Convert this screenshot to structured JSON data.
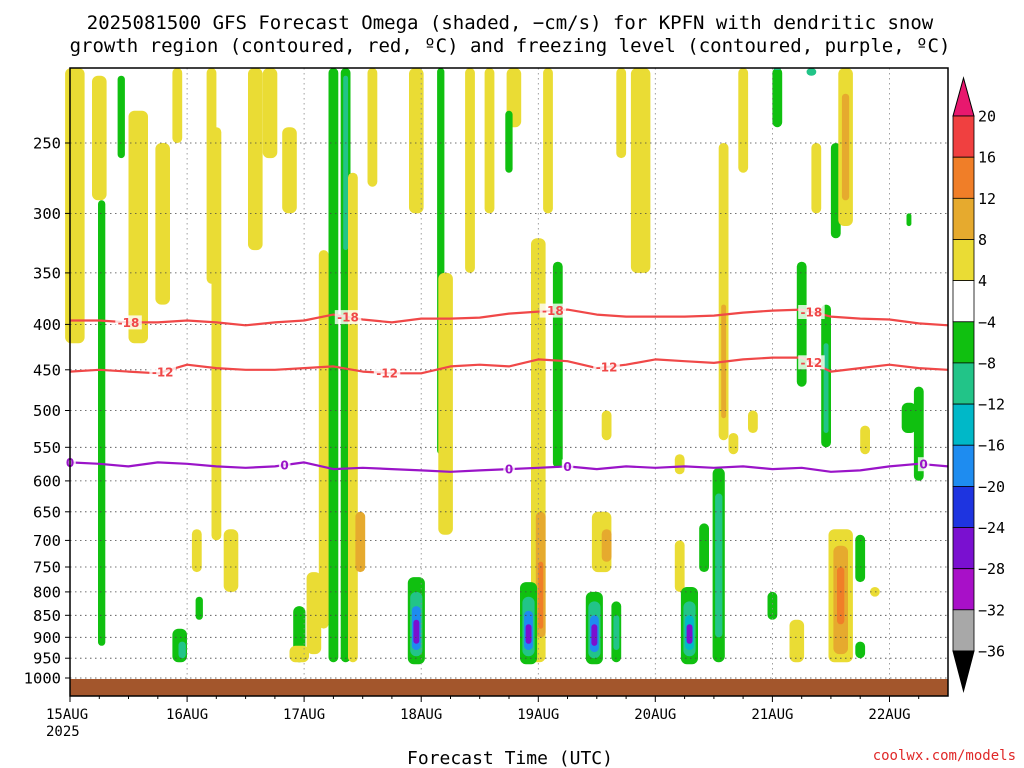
{
  "chart_data": {
    "type": "heatmap",
    "title": "2025081500 GFS Forecast Omega (shaded, −cm/s) for KPFN with dendritic snow",
    "subtitle": "growth region (contoured, red, ºC) and freezing level (contoured, purple, ºC)",
    "xlabel": "Forecast Time (UTC)",
    "ylabel": "",
    "credit": "coolwx.com/models",
    "y_ticks": [
      250,
      300,
      350,
      400,
      450,
      500,
      550,
      600,
      650,
      700,
      750,
      800,
      850,
      900,
      950,
      1000
    ],
    "y_tick_labels": [
      "250",
      "300",
      "350",
      "400",
      "450",
      "500",
      "550",
      "600",
      "650",
      "700",
      "750",
      "800",
      "850",
      "900",
      "950",
      "1000"
    ],
    "ylim": [
      200,
      1020
    ],
    "y_scale": "log-pressure (inverted)",
    "x_ticks": [
      0,
      24,
      48,
      72,
      96,
      120,
      144,
      168
    ],
    "x_tick_labels": [
      "15AUG",
      "16AUG",
      "17AUG",
      "18AUG",
      "19AUG",
      "20AUG",
      "21AUG",
      "22AUG"
    ],
    "x_year_label": "2025",
    "xlim": [
      0,
      180
    ],
    "grid": true,
    "colorbar": {
      "labels": [
        "20",
        "16",
        "12",
        "8",
        "4",
        "−4",
        "−8",
        "−12",
        "−16",
        "−20",
        "−24",
        "−28",
        "−32",
        "−36"
      ],
      "colors": [
        "#e8186e",
        "#f04040",
        "#f07e28",
        "#e6aa2e",
        "#eadc34",
        "#ffffff",
        "#10c010",
        "#22c488",
        "#00b8c8",
        "#1e8cf0",
        "#1e34e0",
        "#7a10d0",
        "#a810c8",
        "#a8a8a8",
        "#000000"
      ]
    },
    "surface_color": "#a3562c",
    "contours": {
      "dgz_color": "#f04848",
      "freezing_color": "#9a14c8",
      "m18": {
        "label": "-18",
        "times": [
          0,
          6,
          12,
          18,
          24,
          30,
          36,
          42,
          48,
          54,
          60,
          66,
          72,
          78,
          84,
          90,
          96,
          102,
          108,
          114,
          120,
          126,
          132,
          138,
          144,
          150,
          156,
          162,
          168,
          174,
          180
        ],
        "pressure": [
          396,
          396,
          398,
          398,
          396,
          398,
          401,
          398,
          396,
          390,
          395,
          398,
          394,
          394,
          393,
          389,
          387,
          385,
          390,
          392,
          392,
          392,
          391,
          388,
          386,
          385,
          392,
          394,
          395,
          399,
          401
        ],
        "label_times": [
          12,
          57,
          99,
          152
        ]
      },
      "m12": {
        "label": "-12",
        "times": [
          0,
          6,
          12,
          18,
          24,
          30,
          36,
          42,
          48,
          54,
          60,
          66,
          72,
          78,
          84,
          90,
          96,
          102,
          108,
          114,
          120,
          126,
          132,
          138,
          144,
          150,
          156,
          162,
          168,
          174,
          180
        ],
        "pressure": [
          452,
          450,
          452,
          454,
          444,
          448,
          450,
          450,
          448,
          446,
          452,
          454,
          454,
          446,
          444,
          446,
          438,
          440,
          448,
          444,
          438,
          440,
          442,
          438,
          436,
          436,
          452,
          448,
          444,
          448,
          450
        ],
        "label_times": [
          19,
          65,
          110,
          152
        ]
      },
      "zero": {
        "label": "0",
        "times": [
          0,
          6,
          12,
          18,
          24,
          30,
          36,
          42,
          48,
          54,
          60,
          66,
          72,
          78,
          84,
          90,
          96,
          102,
          108,
          114,
          120,
          126,
          132,
          138,
          144,
          150,
          156,
          162,
          168,
          174,
          180
        ],
        "pressure": [
          572,
          574,
          578,
          572,
          574,
          578,
          580,
          578,
          572,
          582,
          580,
          582,
          584,
          586,
          584,
          582,
          580,
          578,
          582,
          578,
          580,
          578,
          580,
          578,
          582,
          580,
          586,
          584,
          578,
          574,
          578
        ],
        "label_times": [
          0,
          44,
          90,
          102,
          175
        ]
      }
    },
    "omega_shading": [
      {
        "t": 1,
        "w": 4,
        "p1": 200,
        "p2": 420,
        "v": 4
      },
      {
        "t": 6,
        "w": 3,
        "p1": 210,
        "p2": 290,
        "v": 4
      },
      {
        "t": 6.5,
        "w": 1.5,
        "p1": 290,
        "p2": 920,
        "v": -8
      },
      {
        "t": 10.5,
        "w": 1.5,
        "p1": 210,
        "p2": 260,
        "v": -8
      },
      {
        "t": 14,
        "w": 4,
        "p1": 230,
        "p2": 420,
        "v": 4
      },
      {
        "t": 19,
        "w": 3,
        "p1": 250,
        "p2": 380,
        "v": 4
      },
      {
        "t": 22,
        "w": 2,
        "p1": 200,
        "p2": 250,
        "v": 4
      },
      {
        "t": 29,
        "w": 2,
        "p1": 200,
        "p2": 360,
        "v": 4
      },
      {
        "t": 30,
        "w": 2,
        "p1": 240,
        "p2": 700,
        "v": 4
      },
      {
        "t": 22.5,
        "w": 3,
        "p1": 880,
        "p2": 960,
        "v": -8
      },
      {
        "t": 23,
        "w": 1.5,
        "p1": 910,
        "p2": 950,
        "v": -12
      },
      {
        "t": 26,
        "w": 2,
        "p1": 680,
        "p2": 760,
        "v": 4
      },
      {
        "t": 26.5,
        "w": 1.5,
        "p1": 810,
        "p2": 860,
        "v": -8
      },
      {
        "t": 33,
        "w": 3,
        "p1": 680,
        "p2": 800,
        "v": 4
      },
      {
        "t": 38,
        "w": 3,
        "p1": 200,
        "p2": 330,
        "v": 4
      },
      {
        "t": 41,
        "w": 3,
        "p1": 200,
        "p2": 260,
        "v": 4
      },
      {
        "t": 45,
        "w": 3,
        "p1": 240,
        "p2": 300,
        "v": 4
      },
      {
        "t": 47,
        "w": 2.5,
        "p1": 830,
        "p2": 960,
        "v": -8
      },
      {
        "t": 47,
        "w": 4,
        "p1": 920,
        "p2": 960,
        "v": 4
      },
      {
        "t": 50,
        "w": 3,
        "p1": 760,
        "p2": 940,
        "v": 4
      },
      {
        "t": 54,
        "w": 2,
        "p1": 200,
        "p2": 960,
        "v": -8
      },
      {
        "t": 52,
        "w": 2,
        "p1": 330,
        "p2": 880,
        "v": 4
      },
      {
        "t": 56.5,
        "w": 2,
        "p1": 200,
        "p2": 960,
        "v": -8
      },
      {
        "t": 56.5,
        "w": 1,
        "p1": 210,
        "p2": 330,
        "v": -12
      },
      {
        "t": 58,
        "w": 2,
        "p1": 270,
        "p2": 960,
        "v": 4
      },
      {
        "t": 59.5,
        "w": 2,
        "p1": 650,
        "p2": 760,
        "v": 8
      },
      {
        "t": 62,
        "w": 2,
        "p1": 200,
        "p2": 280,
        "v": 4
      },
      {
        "t": 71,
        "w": 3,
        "p1": 200,
        "p2": 300,
        "v": 4
      },
      {
        "t": 76,
        "w": 1.5,
        "p1": 200,
        "p2": 560,
        "v": -8
      },
      {
        "t": 71,
        "w": 3.5,
        "p1": 770,
        "p2": 965,
        "v": -8
      },
      {
        "t": 71,
        "w": 2.5,
        "p1": 800,
        "p2": 945,
        "v": -12
      },
      {
        "t": 71,
        "w": 1.8,
        "p1": 830,
        "p2": 930,
        "v": -20
      },
      {
        "t": 71,
        "w": 1.2,
        "p1": 860,
        "p2": 915,
        "v": -28
      },
      {
        "t": 77,
        "w": 3,
        "p1": 350,
        "p2": 690,
        "v": 4
      },
      {
        "t": 82,
        "w": 2,
        "p1": 200,
        "p2": 350,
        "v": 4
      },
      {
        "t": 86,
        "w": 2,
        "p1": 200,
        "p2": 300,
        "v": 4
      },
      {
        "t": 91,
        "w": 3,
        "p1": 200,
        "p2": 240,
        "v": 4
      },
      {
        "t": 90,
        "w": 1.5,
        "p1": 230,
        "p2": 270,
        "v": -8
      },
      {
        "t": 96,
        "w": 3,
        "p1": 320,
        "p2": 960,
        "v": 4
      },
      {
        "t": 96.5,
        "w": 2,
        "p1": 650,
        "p2": 900,
        "v": 8
      },
      {
        "t": 96.5,
        "w": 1,
        "p1": 740,
        "p2": 880,
        "v": 12
      },
      {
        "t": 98,
        "w": 2,
        "p1": 200,
        "p2": 300,
        "v": 4
      },
      {
        "t": 100,
        "w": 2,
        "p1": 340,
        "p2": 580,
        "v": -8
      },
      {
        "t": 94,
        "w": 3.5,
        "p1": 780,
        "p2": 965,
        "v": -8
      },
      {
        "t": 94,
        "w": 2.5,
        "p1": 810,
        "p2": 945,
        "v": -12
      },
      {
        "t": 94,
        "w": 1.8,
        "p1": 840,
        "p2": 930,
        "v": -20
      },
      {
        "t": 94,
        "w": 1.2,
        "p1": 870,
        "p2": 915,
        "v": -28
      },
      {
        "t": 109,
        "w": 4,
        "p1": 650,
        "p2": 760,
        "v": 4
      },
      {
        "t": 110,
        "w": 2,
        "p1": 680,
        "p2": 740,
        "v": 8
      },
      {
        "t": 110,
        "w": 2,
        "p1": 500,
        "p2": 540,
        "v": 4
      },
      {
        "t": 107.5,
        "w": 3.5,
        "p1": 800,
        "p2": 965,
        "v": -8
      },
      {
        "t": 107.5,
        "w": 2.5,
        "p1": 820,
        "p2": 950,
        "v": -12
      },
      {
        "t": 107.5,
        "w": 1.8,
        "p1": 850,
        "p2": 935,
        "v": -20
      },
      {
        "t": 107.5,
        "w": 1.2,
        "p1": 870,
        "p2": 920,
        "v": -28
      },
      {
        "t": 112,
        "w": 2,
        "p1": 820,
        "p2": 960,
        "v": -8
      },
      {
        "t": 112,
        "w": 1.2,
        "p1": 850,
        "p2": 930,
        "v": -12
      },
      {
        "t": 117,
        "w": 4,
        "p1": 200,
        "p2": 350,
        "v": 4
      },
      {
        "t": 113,
        "w": 2,
        "p1": 200,
        "p2": 260,
        "v": 4
      },
      {
        "t": 125,
        "w": 2,
        "p1": 700,
        "p2": 800,
        "v": 4
      },
      {
        "t": 125,
        "w": 2,
        "p1": 560,
        "p2": 590,
        "v": 4
      },
      {
        "t": 130,
        "w": 2,
        "p1": 670,
        "p2": 760,
        "v": -8
      },
      {
        "t": 127,
        "w": 3.5,
        "p1": 790,
        "p2": 965,
        "v": -8
      },
      {
        "t": 127,
        "w": 2.5,
        "p1": 820,
        "p2": 945,
        "v": -12
      },
      {
        "t": 127,
        "w": 1.8,
        "p1": 850,
        "p2": 930,
        "v": -16
      },
      {
        "t": 127,
        "w": 1.2,
        "p1": 870,
        "p2": 915,
        "v": -28
      },
      {
        "t": 133,
        "w": 2.5,
        "p1": 580,
        "p2": 960,
        "v": -8
      },
      {
        "t": 133,
        "w": 1.5,
        "p1": 620,
        "p2": 900,
        "v": -12
      },
      {
        "t": 134,
        "w": 2,
        "p1": 250,
        "p2": 540,
        "v": 4
      },
      {
        "t": 134,
        "w": 1,
        "p1": 380,
        "p2": 510,
        "v": 8
      },
      {
        "t": 136,
        "w": 2,
        "p1": 530,
        "p2": 560,
        "v": 4
      },
      {
        "t": 138,
        "w": 2,
        "p1": 200,
        "p2": 270,
        "v": 4
      },
      {
        "t": 140,
        "w": 2,
        "p1": 500,
        "p2": 530,
        "v": 4
      },
      {
        "t": 144,
        "w": 2,
        "p1": 800,
        "p2": 860,
        "v": -8
      },
      {
        "t": 145,
        "w": 2,
        "p1": 200,
        "p2": 240,
        "v": -8
      },
      {
        "t": 145,
        "w": 1.5,
        "p1": 200,
        "p2": 205,
        "v": -12
      },
      {
        "t": 150,
        "w": 2,
        "p1": 340,
        "p2": 470,
        "v": -8
      },
      {
        "t": 149,
        "w": 3,
        "p1": 860,
        "p2": 960,
        "v": 4
      },
      {
        "t": 155,
        "w": 2,
        "p1": 380,
        "p2": 550,
        "v": -8
      },
      {
        "t": 155,
        "w": 1,
        "p1": 420,
        "p2": 530,
        "v": -12
      },
      {
        "t": 153,
        "w": 2,
        "p1": 250,
        "p2": 300,
        "v": 4
      },
      {
        "t": 157,
        "w": 2,
        "p1": 250,
        "p2": 320,
        "v": -8
      },
      {
        "t": 158,
        "w": 5,
        "p1": 680,
        "p2": 960,
        "v": 4
      },
      {
        "t": 158,
        "w": 3,
        "p1": 710,
        "p2": 940,
        "v": 8
      },
      {
        "t": 158,
        "w": 1.5,
        "p1": 750,
        "p2": 870,
        "v": 12
      },
      {
        "t": 162,
        "w": 2,
        "p1": 690,
        "p2": 780,
        "v": -8
      },
      {
        "t": 162,
        "w": 2,
        "p1": 910,
        "p2": 950,
        "v": -8
      },
      {
        "t": 159,
        "w": 3,
        "p1": 200,
        "p2": 310,
        "v": 4
      },
      {
        "t": 159,
        "w": 1.5,
        "p1": 220,
        "p2": 290,
        "v": 8
      },
      {
        "t": 163,
        "w": 2,
        "p1": 520,
        "p2": 560,
        "v": 4
      },
      {
        "t": 172,
        "w": 3,
        "p1": 490,
        "p2": 530,
        "v": -8
      },
      {
        "t": 174,
        "w": 2,
        "p1": 470,
        "p2": 600,
        "v": -8
      },
      {
        "t": 172,
        "w": 1,
        "p1": 300,
        "p2": 310,
        "v": -8
      },
      {
        "t": 165,
        "w": 2,
        "p1": 790,
        "p2": 810,
        "v": 4
      },
      {
        "t": 152,
        "w": 2,
        "p1": 200,
        "p2": 210,
        "v": -12
      }
    ]
  }
}
